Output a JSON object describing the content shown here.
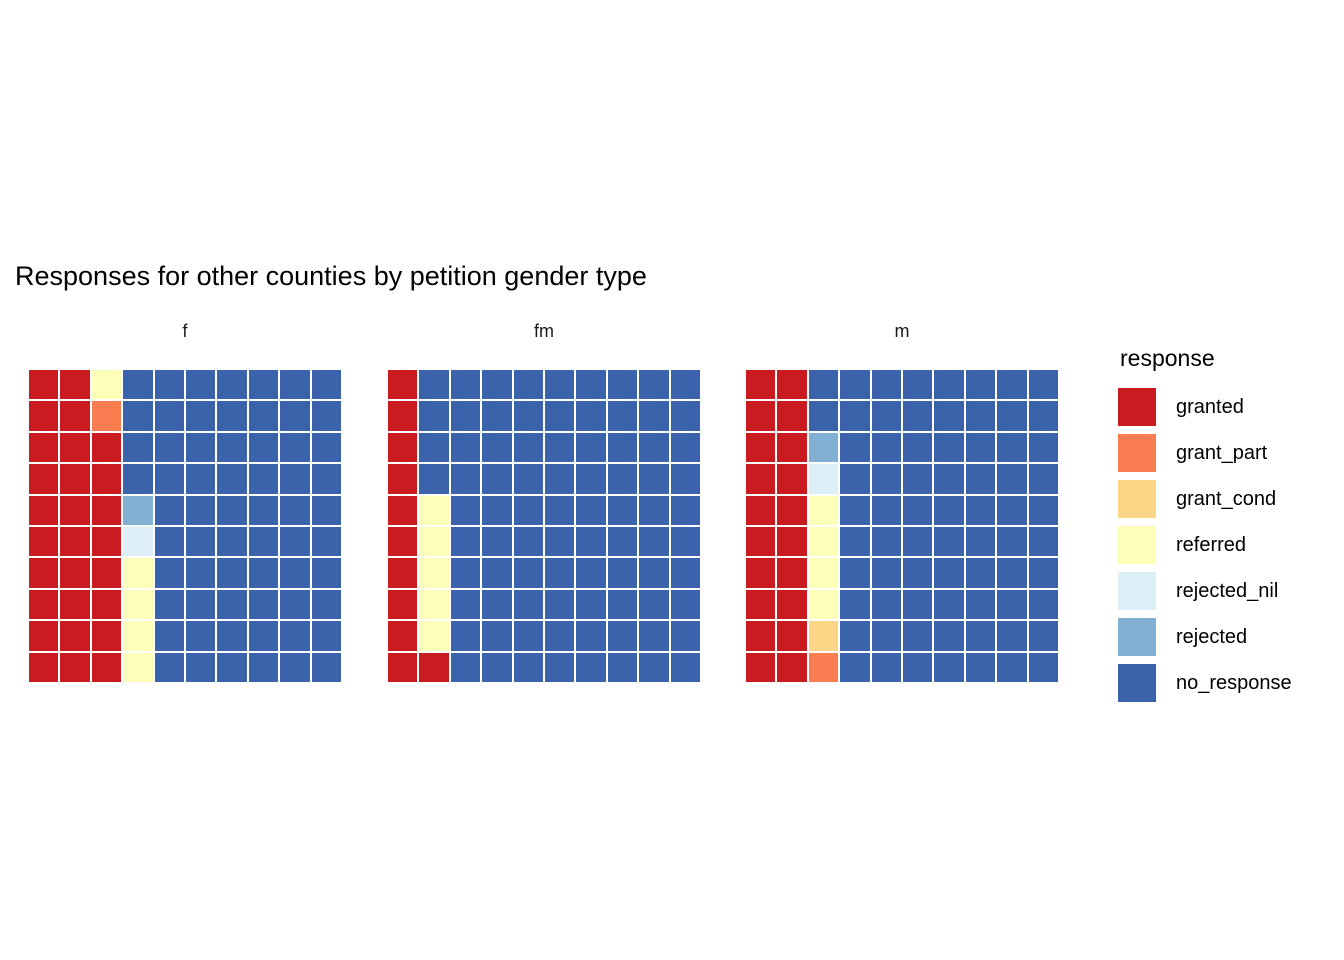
{
  "page": {
    "background": "#FFFFFF"
  },
  "chart_data": {
    "type": "heatmap",
    "variant": "faceted-waffle",
    "title": "Responses for other counties by petition gender type",
    "facet_labels": [
      "f",
      "fm",
      "m"
    ],
    "grid": {
      "nrow": 10,
      "ncol": 10,
      "cell_gap_color": "#FFFFFF"
    },
    "legend": {
      "title": "response",
      "position": "right",
      "entries": [
        {
          "label": "granted",
          "color": "#CA1B20"
        },
        {
          "label": "grant_part",
          "color": "#F87D51"
        },
        {
          "label": "grant_cond",
          "color": "#FBD687"
        },
        {
          "label": "referred",
          "color": "#FDFEB8"
        },
        {
          "label": "rejected_nil",
          "color": "#DCEEF6"
        },
        {
          "label": "rejected",
          "color": "#82B0D4"
        },
        {
          "label": "no_response",
          "color": "#3A63AB"
        }
      ]
    },
    "palette": {
      "granted": "#CA1B20",
      "grant_part": "#F87D51",
      "grant_cond": "#FBD687",
      "referred": "#FDFEB8",
      "rejected_nil": "#DCEEF6",
      "rejected": "#82B0D4",
      "no_response": "#3A63AB"
    },
    "code_map": {
      "g": "granted",
      "p": "grant_part",
      "c": "grant_cond",
      "r": "referred",
      "x": "rejected_nil",
      "j": "rejected",
      "n": "no_response"
    },
    "facets": [
      {
        "label": "f",
        "counts": {
          "granted": 28,
          "grant_part": 1,
          "grant_cond": 0,
          "referred": 5,
          "rejected_nil": 1,
          "rejected": 1,
          "no_response": 64
        },
        "rows": [
          "ggrnnnnnnn",
          "ggpnnnnnnn",
          "gggnnnnnnn",
          "gggnnnnnnn",
          "gggjnnnnnn",
          "gggxnnnnnn",
          "gggrnnnnnn",
          "gggrnnnnnn",
          "gggrnnnnnn",
          "gggrnnnnnn"
        ]
      },
      {
        "label": "fm",
        "counts": {
          "granted": 11,
          "grant_part": 0,
          "grant_cond": 0,
          "referred": 5,
          "rejected_nil": 0,
          "rejected": 0,
          "no_response": 84
        },
        "rows": [
          "gnnnnnnnnn",
          "gnnnnnnnnn",
          "gnnnnnnnnn",
          "gnnnnnnnnn",
          "grnnnnnnnn",
          "grnnnnnnnn",
          "grnnnnnnnn",
          "grnnnnnnnn",
          "grnnnnnnnn",
          "ggnnnnnnnn"
        ]
      },
      {
        "label": "m",
        "counts": {
          "granted": 20,
          "grant_part": 1,
          "grant_cond": 1,
          "referred": 4,
          "rejected_nil": 1,
          "rejected": 1,
          "no_response": 72
        },
        "rows": [
          "ggnnnnnnnn",
          "ggnnnnnnnn",
          "ggjnnnnnnn",
          "ggxnnnnnnn",
          "ggrnnnnnnn",
          "ggrnnnnnnn",
          "ggrnnnnnnn",
          "ggrnnnnnnn",
          "ggcnnnnnnn",
          "ggpnnnnnnn"
        ]
      }
    ]
  }
}
